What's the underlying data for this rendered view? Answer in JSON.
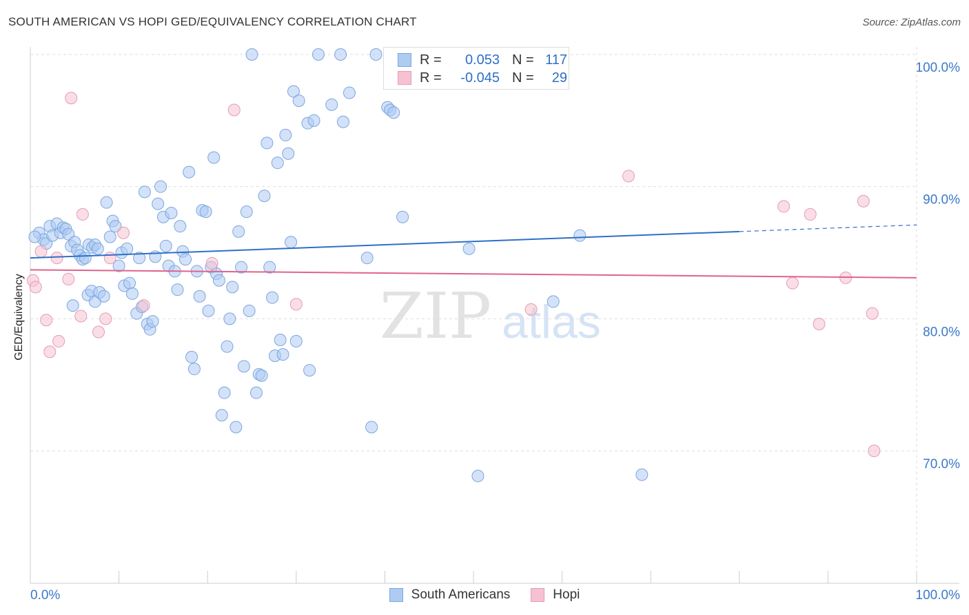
{
  "title": "SOUTH AMERICAN VS HOPI GED/EQUIVALENCY CORRELATION CHART",
  "source": "Source: ZipAtlas.com",
  "watermark": {
    "zip": "ZIP",
    "atlas": "atlas"
  },
  "legend_top": {
    "rows": [
      {
        "r_label": "R =",
        "r_value": "0.053",
        "n_label": "N =",
        "n_value": "117"
      },
      {
        "r_label": "R =",
        "r_value": "-0.045",
        "n_label": "N =",
        "n_value": "29"
      }
    ]
  },
  "legend_bottom": {
    "items": [
      "South Americans",
      "Hopi"
    ]
  },
  "colors": {
    "blue_fill": "#aecbf2",
    "blue_stroke": "#7aa6e0",
    "blue_line": "#2f6fc6",
    "pink_fill": "#f6c2d2",
    "pink_stroke": "#e69ab4",
    "pink_line": "#e0628c",
    "grid": "#dddddd",
    "axis_text": "#3b78c9"
  },
  "chart_data": {
    "type": "scatter",
    "title": "SOUTH AMERICAN VS HOPI GED/EQUIVALENCY CORRELATION CHART",
    "xlabel": "",
    "ylabel": "GED/Equivalency",
    "xlim": [
      0,
      100
    ],
    "ylim": [
      61,
      101.5
    ],
    "x_tick_labels": [
      "0.0%",
      "100.0%"
    ],
    "y_ticks": [
      70,
      80,
      90,
      100
    ],
    "y_tick_labels": [
      "70.0%",
      "80.0%",
      "90.0%",
      "100.0%"
    ],
    "grid": true,
    "legend_position": "top-center",
    "series": [
      {
        "name": "South Americans",
        "trend": {
          "x0": 0,
          "y0": 84.6,
          "x1": 80,
          "y1": 86.6,
          "dash_to_x": 100,
          "dash_to_y": 87.1
        },
        "points": [
          [
            1.0,
            86.5
          ],
          [
            1.5,
            86.0
          ],
          [
            1.8,
            85.7
          ],
          [
            2.2,
            87.0
          ],
          [
            2.5,
            86.3
          ],
          [
            3.0,
            87.2
          ],
          [
            3.4,
            86.5
          ],
          [
            3.7,
            86.9
          ],
          [
            4.0,
            86.8
          ],
          [
            4.3,
            86.4
          ],
          [
            4.6,
            85.5
          ],
          [
            5.0,
            85.8
          ],
          [
            5.3,
            85.2
          ],
          [
            5.6,
            84.8
          ],
          [
            5.9,
            84.5
          ],
          [
            6.2,
            84.6
          ],
          [
            6.6,
            85.6
          ],
          [
            7.0,
            85.4
          ],
          [
            7.3,
            85.6
          ],
          [
            7.6,
            85.3
          ],
          [
            4.8,
            81.0
          ],
          [
            6.5,
            81.8
          ],
          [
            6.9,
            82.1
          ],
          [
            7.3,
            81.3
          ],
          [
            7.8,
            82.0
          ],
          [
            8.3,
            81.7
          ],
          [
            8.6,
            88.8
          ],
          [
            9.0,
            86.2
          ],
          [
            9.3,
            87.4
          ],
          [
            9.6,
            87.0
          ],
          [
            10.0,
            84.0
          ],
          [
            10.3,
            85.0
          ],
          [
            10.6,
            82.5
          ],
          [
            10.9,
            85.3
          ],
          [
            11.2,
            82.7
          ],
          [
            11.5,
            81.9
          ],
          [
            12.0,
            80.4
          ],
          [
            12.3,
            84.6
          ],
          [
            12.6,
            80.9
          ],
          [
            12.9,
            89.6
          ],
          [
            13.2,
            79.6
          ],
          [
            13.5,
            79.2
          ],
          [
            13.8,
            79.8
          ],
          [
            14.1,
            84.7
          ],
          [
            14.4,
            88.7
          ],
          [
            14.7,
            90.0
          ],
          [
            15.0,
            87.7
          ],
          [
            15.3,
            85.5
          ],
          [
            15.6,
            84.0
          ],
          [
            15.9,
            88.0
          ],
          [
            16.3,
            83.6
          ],
          [
            16.6,
            82.2
          ],
          [
            16.9,
            87.0
          ],
          [
            17.2,
            85.1
          ],
          [
            17.5,
            84.5
          ],
          [
            17.9,
            91.1
          ],
          [
            18.2,
            77.1
          ],
          [
            18.5,
            76.2
          ],
          [
            18.8,
            83.6
          ],
          [
            19.1,
            81.7
          ],
          [
            19.4,
            88.2
          ],
          [
            19.8,
            88.1
          ],
          [
            20.1,
            80.6
          ],
          [
            20.4,
            83.9
          ],
          [
            20.7,
            92.2
          ],
          [
            21.0,
            83.4
          ],
          [
            21.3,
            82.9
          ],
          [
            21.6,
            72.7
          ],
          [
            21.9,
            74.4
          ],
          [
            22.2,
            77.9
          ],
          [
            22.5,
            80.0
          ],
          [
            22.8,
            82.4
          ],
          [
            23.2,
            71.8
          ],
          [
            23.5,
            86.6
          ],
          [
            23.8,
            83.9
          ],
          [
            24.1,
            76.4
          ],
          [
            24.4,
            88.1
          ],
          [
            24.7,
            80.6
          ],
          [
            25.0,
            100.0
          ],
          [
            25.5,
            74.4
          ],
          [
            25.8,
            75.8
          ],
          [
            26.1,
            75.7
          ],
          [
            26.4,
            89.3
          ],
          [
            26.7,
            93.3
          ],
          [
            27.0,
            83.9
          ],
          [
            27.3,
            81.6
          ],
          [
            27.6,
            77.2
          ],
          [
            27.9,
            91.8
          ],
          [
            28.2,
            78.4
          ],
          [
            28.5,
            77.3
          ],
          [
            28.8,
            93.9
          ],
          [
            29.1,
            92.5
          ],
          [
            29.4,
            85.8
          ],
          [
            29.7,
            97.2
          ],
          [
            30.0,
            78.3
          ],
          [
            30.3,
            96.5
          ],
          [
            31.3,
            94.8
          ],
          [
            32.0,
            95.0
          ],
          [
            31.5,
            76.1
          ],
          [
            32.5,
            100.0
          ],
          [
            34.0,
            96.2
          ],
          [
            35.0,
            100.0
          ],
          [
            35.3,
            94.9
          ],
          [
            36.0,
            97.1
          ],
          [
            38.0,
            84.6
          ],
          [
            38.5,
            71.8
          ],
          [
            39.0,
            100.0
          ],
          [
            40.3,
            96.0
          ],
          [
            40.6,
            95.8
          ],
          [
            41.0,
            95.6
          ],
          [
            42.0,
            87.7
          ],
          [
            49.5,
            85.3
          ],
          [
            50.5,
            68.1
          ],
          [
            59.0,
            81.3
          ],
          [
            62.0,
            86.3
          ],
          [
            69.0,
            68.2
          ],
          [
            0.5,
            86.2
          ]
        ]
      },
      {
        "name": "Hopi",
        "trend": {
          "x0": 0,
          "y0": 83.7,
          "x1": 100,
          "y1": 83.1
        },
        "points": [
          [
            0.3,
            82.9
          ],
          [
            0.6,
            82.4
          ],
          [
            1.2,
            85.1
          ],
          [
            1.8,
            79.9
          ],
          [
            2.2,
            77.5
          ],
          [
            3.2,
            78.3
          ],
          [
            3.0,
            84.6
          ],
          [
            4.3,
            83.0
          ],
          [
            4.6,
            96.7
          ],
          [
            5.7,
            80.2
          ],
          [
            5.9,
            87.9
          ],
          [
            7.7,
            79.0
          ],
          [
            8.5,
            80.0
          ],
          [
            9.0,
            84.6
          ],
          [
            10.5,
            86.5
          ],
          [
            12.8,
            81.0
          ],
          [
            20.5,
            84.2
          ],
          [
            23.0,
            95.8
          ],
          [
            30.0,
            81.1
          ],
          [
            56.5,
            80.7
          ],
          [
            67.5,
            90.8
          ],
          [
            85.0,
            88.5
          ],
          [
            86.0,
            82.7
          ],
          [
            88.0,
            87.9
          ],
          [
            89.0,
            79.6
          ],
          [
            92.0,
            83.1
          ],
          [
            94.0,
            88.9
          ],
          [
            95.0,
            80.4
          ],
          [
            95.2,
            70.0
          ]
        ]
      }
    ]
  }
}
